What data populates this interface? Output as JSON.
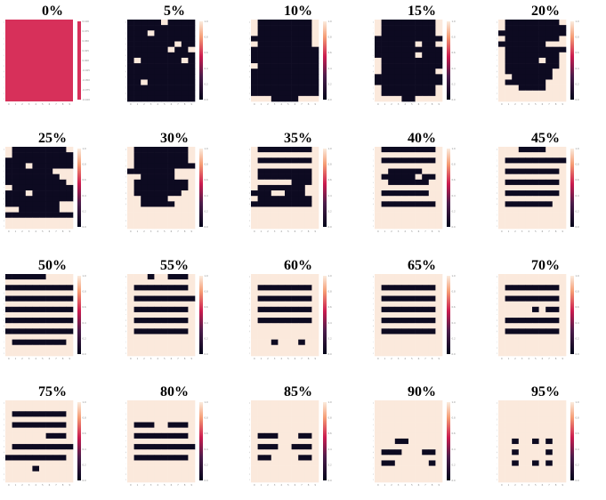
{
  "colors": {
    "dark": "#0d0a21",
    "light": "#fbe9dc",
    "uniform": "#d7305a"
  },
  "chart_data": {
    "type": "heatmap",
    "grid_size": [
      15,
      10
    ],
    "colorbar_ticks": [
      "0.0",
      "0.2",
      "0.4",
      "0.6",
      "0.8",
      "1.0"
    ],
    "colorbar_ticks_first": [
      "-0.100",
      "-0.075",
      "-0.050",
      "-0.025",
      "0.000",
      "0.025",
      "0.050",
      "0.075",
      "0.100"
    ],
    "x_ticks": [
      "0",
      "1",
      "2",
      "3",
      "4",
      "5",
      "6",
      "7",
      "8",
      "9"
    ],
    "y_ticks": [
      "0",
      "1",
      "2",
      "3",
      "4",
      "5",
      "6",
      "7",
      "8",
      "9",
      "10",
      "11",
      "12",
      "13",
      "14"
    ],
    "panels": [
      {
        "label": "0%",
        "uniform": true
      },
      {
        "label": "5%",
        "rows": [
          "0000010000",
          "0000000000",
          "0001000000",
          "0000000000",
          "0000000100",
          "0000001001",
          "0000000000",
          "0100000010",
          "0000000000",
          "0000000000",
          "0000000000",
          "0010000000",
          "0000000000",
          "0000000000",
          "0000000000"
        ]
      },
      {
        "label": "10%",
        "rows": [
          "1000000001",
          "1000000001",
          "1000000001",
          "0000000001",
          "1000000001",
          "0000000000",
          "0000000000",
          "0000000000",
          "1000000000",
          "0000000000",
          "0000000000",
          "0000000000",
          "0000000000",
          "0000000000",
          "1110000111"
        ]
      },
      {
        "label": "15%",
        "rows": [
          "1000000001",
          "1000000001",
          "1000000001",
          "0000000000",
          "0000001001",
          "0000000000",
          "0000001000",
          "1000000000",
          "1000000000",
          "1000000001",
          "0000000000",
          "0000000000",
          "1000000001",
          "1000000001",
          "1111001111"
        ]
      },
      {
        "label": "20%",
        "rows": [
          "1000000001",
          "1000000000",
          "0000000000",
          "1000000001",
          "0000000111",
          "1000000000",
          "1000000001",
          "1000001001",
          "1000000001",
          "1000000011",
          "1100000011",
          "1000000111",
          "1110000111",
          "1111111111",
          "1111111111"
        ]
      },
      {
        "label": "25%",
        "rows": [
          "1000000001",
          "1000000000",
          "0000000000",
          "0001000000",
          "0000000111",
          "0000000011",
          "0000000001",
          "1000000000",
          "0001000000",
          "0000000000",
          "0000000011",
          "1100000011",
          "0000000000",
          "1111111111",
          "1111111111"
        ]
      },
      {
        "label": "30%",
        "rows": [
          "1000000001",
          "1000000001",
          "1000000001",
          "1000000000",
          "0000000111",
          "1100000111",
          "1000000001",
          "1000000001",
          "1000000011",
          "1100001111",
          "1100000111",
          "1111111111",
          "1111111111",
          "1111111111",
          "1111111111"
        ]
      },
      {
        "label": "35%",
        "rows": [
          "1000000001",
          "1111111111",
          "1000000001",
          "1111111111",
          "1000000001",
          "1000000001",
          "1111110001",
          "1000000011",
          "0001100011",
          "1000000001",
          "0000000001",
          "1111111111",
          "1111111111",
          "1111111111",
          "1111111111"
        ]
      },
      {
        "label": "40%",
        "rows": [
          "1000000001",
          "1111111111",
          "1000000001",
          "1111111111",
          "1100000111",
          "1000001001",
          "1100000011",
          "1111111111",
          "1000000011",
          "1111111111",
          "1000000001",
          "1111111111",
          "1111111111",
          "1111111111",
          "1111111111"
        ]
      },
      {
        "label": "45%",
        "rows": [
          "1110000111",
          "1111111111",
          "1000000000",
          "1111111111",
          "1000000001",
          "1111111111",
          "1000000001",
          "1111111111",
          "1000000001",
          "1111111111",
          "1000000011",
          "1111111111",
          "1111111111",
          "1111111111",
          "1111111111"
        ]
      },
      {
        "label": "50%",
        "rows": [
          "0000001111",
          "1111111111",
          "0000000000",
          "1111111111",
          "0000000000",
          "1111111111",
          "0000000000",
          "1111111111",
          "0000000000",
          "1111111111",
          "0000000000",
          "1111111111",
          "1000000001",
          "1111111111",
          "1111111111"
        ]
      },
      {
        "label": "55%",
        "rows": [
          "1110110001",
          "1111111111",
          "1000000001",
          "1111111111",
          "1000000000",
          "1111111111",
          "1000000001",
          "1111111111",
          "1000000001",
          "1111111111",
          "1000000001",
          "1111111111",
          "1111111111",
          "1111111111",
          "1111111111"
        ]
      },
      {
        "label": "60%",
        "rows": [
          "1111111111",
          "1111111111",
          "1000000001",
          "1111111111",
          "1000000001",
          "1111111111",
          "1000000001",
          "1111111111",
          "1000000001",
          "1111111111",
          "1111111111",
          "1111111111",
          "1110111011",
          "1111111111",
          "1111111111"
        ]
      },
      {
        "label": "65%",
        "rows": [
          "1111111111",
          "1111111111",
          "1000000001",
          "1111111111",
          "1000000001",
          "1111111111",
          "1000000001",
          "1111111111",
          "1000000001",
          "1111111111",
          "1000000001",
          "1111111111",
          "1111111111",
          "1111111111",
          "1111111111"
        ]
      },
      {
        "label": "70%",
        "rows": [
          "1111111111",
          "1111111111",
          "1000000001",
          "1111111111",
          "1000000001",
          "1111111111",
          "1111101001",
          "1111111111",
          "1000000001",
          "1111111111",
          "1000000001",
          "1111111111",
          "1111111111",
          "1111111111",
          "1111111111"
        ]
      },
      {
        "label": "75%",
        "rows": [
          "1111111111",
          "1111111111",
          "1000000001",
          "1111111111",
          "1000000001",
          "1111111111",
          "1111110001",
          "1111111111",
          "1000000000",
          "1111111111",
          "0000000001",
          "1111111111",
          "1111011111",
          "1111111111",
          "1111111111"
        ]
      },
      {
        "label": "80%",
        "rows": [
          "1111111111",
          "1111111111",
          "1111111111",
          "1111111111",
          "1000110001",
          "1111111111",
          "1000000001",
          "1111111111",
          "1000000000",
          "1111111111",
          "1000000001",
          "1111111111",
          "1111111111",
          "1111111111",
          "1111111111"
        ]
      },
      {
        "label": "85%",
        "rows": [
          "1111111111",
          "1111111111",
          "1111111111",
          "1111111111",
          "1111111111",
          "1111111111",
          "1000111001",
          "1111111111",
          "1000110001",
          "1111111111",
          "1001111001",
          "1111111111",
          "1111111111",
          "1111111111",
          "1111111111"
        ]
      },
      {
        "label": "90%",
        "rows": [
          "1111111111",
          "1111111111",
          "1111111111",
          "1111111111",
          "1111111111",
          "1111111111",
          "1111111111",
          "1110011111",
          "1111111111",
          "1000111001",
          "1111111111",
          "1001111101",
          "1111111111",
          "1111111111",
          "1111111111"
        ]
      },
      {
        "label": "95%",
        "rows": [
          "1111111111",
          "1111111111",
          "1111111111",
          "1111111111",
          "1111111111",
          "1111111111",
          "1111111111",
          "1101101011",
          "1111111111",
          "1101111011",
          "1111111111",
          "1101101011",
          "1111111111",
          "1111111111",
          "1111111111"
        ]
      }
    ]
  }
}
